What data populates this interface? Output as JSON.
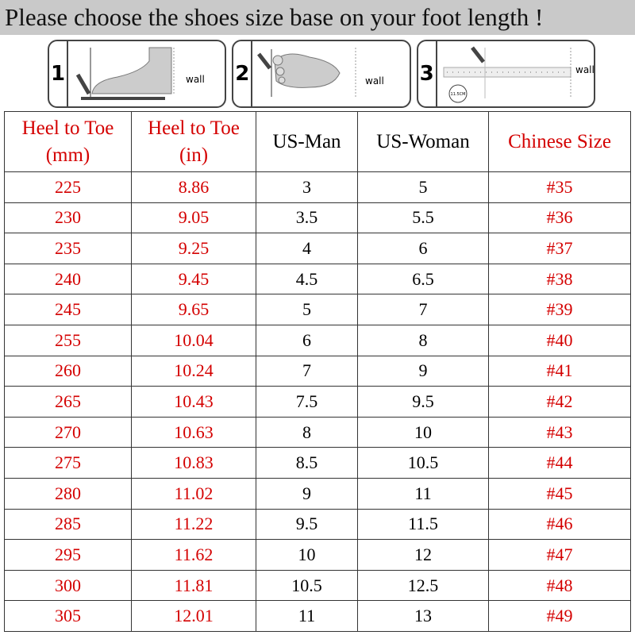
{
  "title": "Please choose the shoes size base on your foot length !",
  "steps": [
    {
      "number": "1",
      "wall": "wall"
    },
    {
      "number": "2",
      "wall": "wall"
    },
    {
      "number": "3",
      "wall": "wall",
      "ruler_label": "11.5CM"
    }
  ],
  "table": {
    "headers": [
      {
        "line1": "Heel to Toe",
        "line2": "(mm)"
      },
      {
        "line1": "Heel to Toe",
        "line2": "(in)"
      },
      {
        "line1": "US-Man",
        "line2": ""
      },
      {
        "line1": "US-Woman",
        "line2": ""
      },
      {
        "line1": "Chinese Size",
        "line2": ""
      }
    ],
    "rows": [
      [
        "225",
        "8.86",
        "3",
        "5",
        "#35"
      ],
      [
        "230",
        "9.05",
        "3.5",
        "5.5",
        "#36"
      ],
      [
        "235",
        "9.25",
        "4",
        "6",
        "#37"
      ],
      [
        "240",
        "9.45",
        "4.5",
        "6.5",
        "#38"
      ],
      [
        "245",
        "9.65",
        "5",
        "7",
        "#39"
      ],
      [
        "255",
        "10.04",
        "6",
        "8",
        "#40"
      ],
      [
        "260",
        "10.24",
        "7",
        "9",
        "#41"
      ],
      [
        "265",
        "10.43",
        "7.5",
        "9.5",
        "#42"
      ],
      [
        "270",
        "10.63",
        "8",
        "10",
        "#43"
      ],
      [
        "275",
        "10.83",
        "8.5",
        "10.5",
        "#44"
      ],
      [
        "280",
        "11.02",
        "9",
        "11",
        "#45"
      ],
      [
        "285",
        "11.22",
        "9.5",
        "11.5",
        "#46"
      ],
      [
        "295",
        "11.62",
        "10",
        "12",
        "#47"
      ],
      [
        "300",
        "11.81",
        "10.5",
        "12.5",
        "#48"
      ],
      [
        "305",
        "12.01",
        "11",
        "13",
        "#49"
      ]
    ]
  },
  "colors": {
    "red": "#d40000",
    "title_bg": "#c9c9c9"
  }
}
